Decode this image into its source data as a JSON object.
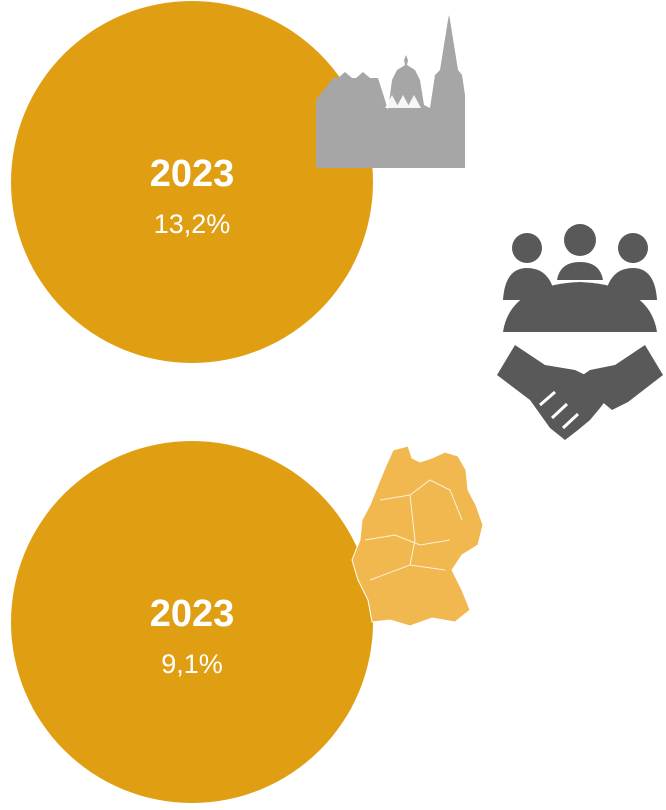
{
  "items": [
    {
      "year": "2023",
      "value": "13,2%"
    },
    {
      "year": "2023",
      "value": "9,1%"
    }
  ]
}
